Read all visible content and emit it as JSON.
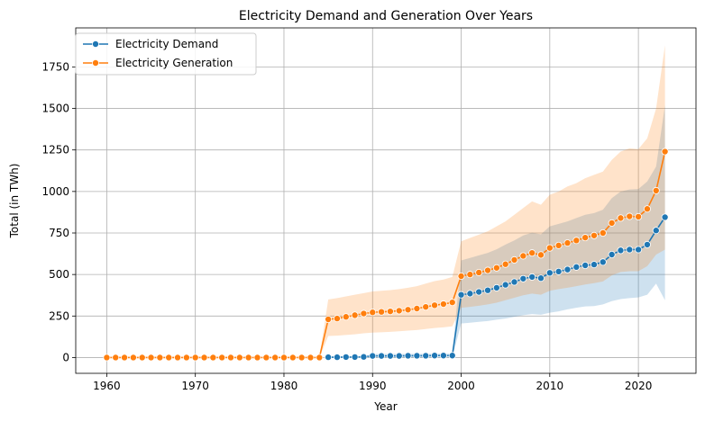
{
  "chart_data": {
    "type": "line",
    "title": "Electricity Demand and Generation Over Years",
    "xlabel": "Year",
    "ylabel": "Total (in TWh)",
    "xlim": [
      1956.5,
      2026.5
    ],
    "ylim": [
      -95,
      1985
    ],
    "x_ticks": [
      1960,
      1970,
      1980,
      1990,
      2000,
      2010,
      2020
    ],
    "y_ticks": [
      0,
      250,
      500,
      750,
      1000,
      1250,
      1500,
      1750
    ],
    "grid": true,
    "legend_position": "top-left",
    "series": [
      {
        "name": "Electricity Demand",
        "color": "#1f77b4",
        "x": [
          1985,
          1986,
          1987,
          1988,
          1989,
          1990,
          1991,
          1992,
          1993,
          1994,
          1995,
          1996,
          1997,
          1998,
          1999,
          2000,
          2001,
          2002,
          2003,
          2004,
          2005,
          2006,
          2007,
          2008,
          2009,
          2010,
          2011,
          2012,
          2013,
          2014,
          2015,
          2016,
          2017,
          2018,
          2019,
          2020,
          2021,
          2022,
          2023
        ],
        "values": [
          2,
          2,
          3,
          3,
          4,
          10,
          10,
          10,
          10,
          11,
          11,
          11,
          12,
          12,
          12,
          378,
          385,
          395,
          405,
          420,
          438,
          455,
          475,
          485,
          478,
          510,
          518,
          530,
          545,
          555,
          560,
          575,
          620,
          645,
          650,
          650,
          680,
          765,
          845
        ],
        "lower": [
          0,
          0,
          0,
          0,
          0,
          0,
          0,
          0,
          0,
          0,
          0,
          0,
          0,
          0,
          0,
          205,
          210,
          215,
          220,
          228,
          235,
          245,
          255,
          262,
          258,
          270,
          278,
          290,
          300,
          308,
          310,
          320,
          340,
          352,
          358,
          362,
          378,
          445,
          345
        ],
        "upper": [
          5,
          5,
          6,
          6,
          7,
          22,
          22,
          22,
          22,
          23,
          23,
          23,
          24,
          24,
          24,
          585,
          600,
          615,
          630,
          652,
          680,
          705,
          735,
          752,
          742,
          790,
          805,
          820,
          840,
          860,
          870,
          890,
          960,
          1000,
          1012,
          1015,
          1060,
          1150,
          1520
        ]
      },
      {
        "name": "Electricity Generation",
        "color": "#ff7f0e",
        "x": [
          1960,
          1961,
          1962,
          1963,
          1964,
          1965,
          1966,
          1967,
          1968,
          1969,
          1970,
          1971,
          1972,
          1973,
          1974,
          1975,
          1976,
          1977,
          1978,
          1979,
          1980,
          1981,
          1982,
          1983,
          1984,
          1985,
          1986,
          1987,
          1988,
          1989,
          1990,
          1991,
          1992,
          1993,
          1994,
          1995,
          1996,
          1997,
          1998,
          1999,
          2000,
          2001,
          2002,
          2003,
          2004,
          2005,
          2006,
          2007,
          2008,
          2009,
          2010,
          2011,
          2012,
          2013,
          2014,
          2015,
          2016,
          2017,
          2018,
          2019,
          2020,
          2021,
          2022,
          2023
        ],
        "values": [
          0,
          0,
          0,
          0,
          0,
          0,
          0,
          0,
          0,
          0,
          0,
          0,
          0,
          0,
          0,
          0,
          0,
          0,
          0,
          0,
          0,
          0,
          0,
          0,
          0,
          230,
          235,
          245,
          255,
          265,
          272,
          275,
          278,
          282,
          288,
          295,
          305,
          315,
          322,
          332,
          490,
          500,
          512,
          525,
          540,
          562,
          588,
          612,
          630,
          618,
          660,
          675,
          690,
          705,
          722,
          735,
          750,
          810,
          840,
          850,
          848,
          895,
          1005,
          1240
        ],
        "lower": [
          0,
          0,
          0,
          0,
          0,
          0,
          0,
          0,
          0,
          0,
          0,
          0,
          0,
          0,
          0,
          0,
          0,
          0,
          0,
          0,
          0,
          0,
          0,
          0,
          0,
          130,
          132,
          136,
          140,
          146,
          150,
          152,
          155,
          158,
          162,
          166,
          172,
          178,
          182,
          188,
          300,
          305,
          312,
          320,
          330,
          345,
          360,
          375,
          385,
          378,
          402,
          412,
          420,
          430,
          440,
          448,
          458,
          495,
          515,
          520,
          520,
          550,
          620,
          650
        ],
        "upper": [
          0,
          0,
          0,
          0,
          0,
          0,
          0,
          0,
          0,
          0,
          0,
          0,
          0,
          0,
          0,
          0,
          0,
          0,
          0,
          0,
          0,
          0,
          0,
          0,
          0,
          350,
          358,
          368,
          378,
          388,
          398,
          402,
          406,
          412,
          420,
          430,
          445,
          460,
          470,
          485,
          700,
          720,
          740,
          760,
          790,
          820,
          860,
          900,
          940,
          920,
          980,
          1000,
          1030,
          1050,
          1080,
          1100,
          1120,
          1190,
          1240,
          1260,
          1255,
          1320,
          1500,
          1880
        ]
      }
    ]
  }
}
